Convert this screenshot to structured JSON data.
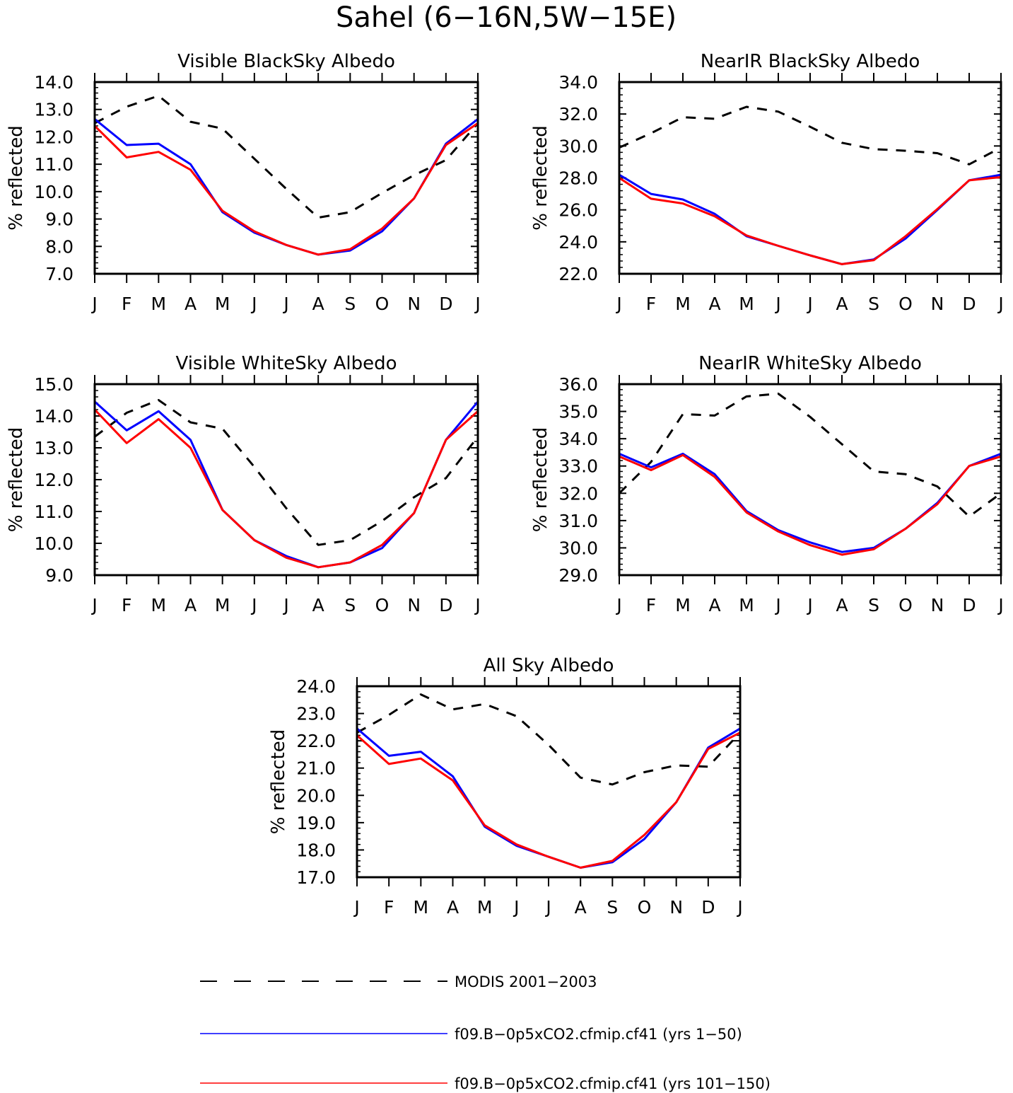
{
  "figure": {
    "title": "Sahel (6−16N,5W−15E)"
  },
  "colors": {
    "modis": "#000000",
    "run1": "#0000ff",
    "run2": "#ff0000"
  },
  "legend": [
    {
      "label": "MODIS 2001−2003",
      "style": "dashed",
      "color": "#000000"
    },
    {
      "label": "f09.B−0p5xCO2.cfmip.cf41 (yrs 1−50)",
      "style": "solid",
      "color": "#0000ff"
    },
    {
      "label": "f09.B−0p5xCO2.cfmip.cf41 (yrs 101−150)",
      "style": "solid",
      "color": "#ff0000"
    }
  ],
  "chart_data": [
    {
      "type": "line",
      "title": "Visible BlackSky Albedo",
      "ylabel": "% reflected",
      "categories": [
        "J",
        "F",
        "M",
        "A",
        "M",
        "J",
        "J",
        "A",
        "S",
        "O",
        "N",
        "D",
        "J"
      ],
      "ylim": [
        7.0,
        14.0
      ],
      "yticks": [
        "7.0",
        "8.0",
        "9.0",
        "10.0",
        "11.0",
        "12.0",
        "13.0",
        "14.0"
      ],
      "series": [
        {
          "key": "modis",
          "values": [
            12.5,
            13.1,
            13.5,
            12.55,
            12.3,
            11.2,
            10.1,
            9.05,
            9.25,
            9.95,
            10.6,
            11.15,
            12.5
          ]
        },
        {
          "key": "run1",
          "values": [
            12.65,
            11.7,
            11.75,
            11.0,
            9.25,
            8.5,
            8.05,
            7.7,
            7.85,
            8.55,
            9.75,
            11.75,
            12.65
          ]
        },
        {
          "key": "run2",
          "values": [
            12.4,
            11.25,
            11.45,
            10.8,
            9.3,
            8.55,
            8.05,
            7.7,
            7.9,
            8.65,
            9.75,
            11.7,
            12.5
          ]
        }
      ]
    },
    {
      "type": "line",
      "title": "NearIR BlackSky Albedo",
      "ylabel": "% reflected",
      "categories": [
        "J",
        "F",
        "M",
        "A",
        "M",
        "J",
        "J",
        "A",
        "S",
        "O",
        "N",
        "D",
        "J"
      ],
      "ylim": [
        22.0,
        34.0
      ],
      "yticks": [
        "22.0",
        "24.0",
        "26.0",
        "28.0",
        "30.0",
        "32.0",
        "34.0"
      ],
      "series": [
        {
          "key": "modis",
          "values": [
            29.9,
            30.8,
            31.8,
            31.7,
            32.45,
            32.15,
            31.2,
            30.2,
            29.8,
            29.7,
            29.55,
            28.85,
            29.9
          ]
        },
        {
          "key": "run1",
          "values": [
            28.2,
            27.0,
            26.65,
            25.75,
            24.35,
            23.75,
            23.15,
            22.6,
            22.9,
            24.2,
            26.0,
            27.85,
            28.2
          ]
        },
        {
          "key": "run2",
          "values": [
            28.0,
            26.7,
            26.4,
            25.6,
            24.4,
            23.75,
            23.15,
            22.6,
            22.85,
            24.35,
            26.05,
            27.85,
            28.05
          ]
        }
      ]
    },
    {
      "type": "line",
      "title": "Visible WhiteSky Albedo",
      "ylabel": "% reflected",
      "categories": [
        "J",
        "F",
        "M",
        "A",
        "M",
        "J",
        "J",
        "A",
        "S",
        "O",
        "N",
        "D",
        "J"
      ],
      "ylim": [
        9.0,
        15.0
      ],
      "yticks": [
        "9.0",
        "10.0",
        "11.0",
        "12.0",
        "13.0",
        "14.0",
        "15.0"
      ],
      "series": [
        {
          "key": "modis",
          "values": [
            13.35,
            14.1,
            14.5,
            13.8,
            13.6,
            12.4,
            11.1,
            9.95,
            10.1,
            10.7,
            11.45,
            12.05,
            13.35
          ]
        },
        {
          "key": "run1",
          "values": [
            14.45,
            13.55,
            14.15,
            13.25,
            11.05,
            10.1,
            9.6,
            9.25,
            9.4,
            9.85,
            10.95,
            13.25,
            14.45
          ]
        },
        {
          "key": "run2",
          "values": [
            14.2,
            13.15,
            13.9,
            13.0,
            11.05,
            10.1,
            9.55,
            9.25,
            9.4,
            9.95,
            10.95,
            13.25,
            14.15
          ]
        }
      ]
    },
    {
      "type": "line",
      "title": "NearIR WhiteSky Albedo",
      "ylabel": "% reflected",
      "categories": [
        "J",
        "F",
        "M",
        "A",
        "M",
        "J",
        "J",
        "A",
        "S",
        "O",
        "N",
        "D",
        "J"
      ],
      "ylim": [
        29.0,
        36.0
      ],
      "yticks": [
        "29.0",
        "30.0",
        "31.0",
        "32.0",
        "33.0",
        "34.0",
        "35.0",
        "36.0"
      ],
      "series": [
        {
          "key": "modis",
          "values": [
            32.0,
            33.15,
            34.9,
            34.85,
            35.55,
            35.65,
            34.8,
            33.8,
            32.8,
            32.7,
            32.25,
            31.15,
            32.0
          ]
        },
        {
          "key": "run1",
          "values": [
            33.45,
            32.95,
            33.45,
            32.7,
            31.35,
            30.65,
            30.2,
            29.85,
            30.0,
            30.7,
            31.65,
            33.0,
            33.45
          ]
        },
        {
          "key": "run2",
          "values": [
            33.35,
            32.85,
            33.4,
            32.6,
            31.3,
            30.6,
            30.1,
            29.75,
            29.95,
            30.7,
            31.6,
            33.0,
            33.35
          ]
        }
      ]
    },
    {
      "type": "line",
      "title": "All Sky Albedo",
      "ylabel": "% reflected",
      "categories": [
        "J",
        "F",
        "M",
        "A",
        "M",
        "J",
        "J",
        "A",
        "S",
        "O",
        "N",
        "D",
        "J"
      ],
      "ylim": [
        17.0,
        24.0
      ],
      "yticks": [
        "17.0",
        "18.0",
        "19.0",
        "20.0",
        "21.0",
        "22.0",
        "23.0",
        "24.0"
      ],
      "series": [
        {
          "key": "modis",
          "values": [
            22.3,
            22.95,
            23.7,
            23.15,
            23.35,
            22.9,
            21.85,
            20.65,
            20.4,
            20.85,
            21.1,
            21.05,
            22.3
          ]
        },
        {
          "key": "run1",
          "values": [
            22.45,
            21.45,
            21.6,
            20.7,
            18.85,
            18.15,
            17.75,
            17.35,
            17.55,
            18.4,
            19.75,
            21.75,
            22.45
          ]
        },
        {
          "key": "run2",
          "values": [
            22.2,
            21.15,
            21.35,
            20.55,
            18.9,
            18.2,
            17.75,
            17.35,
            17.6,
            18.55,
            19.75,
            21.7,
            22.3
          ]
        }
      ]
    }
  ]
}
